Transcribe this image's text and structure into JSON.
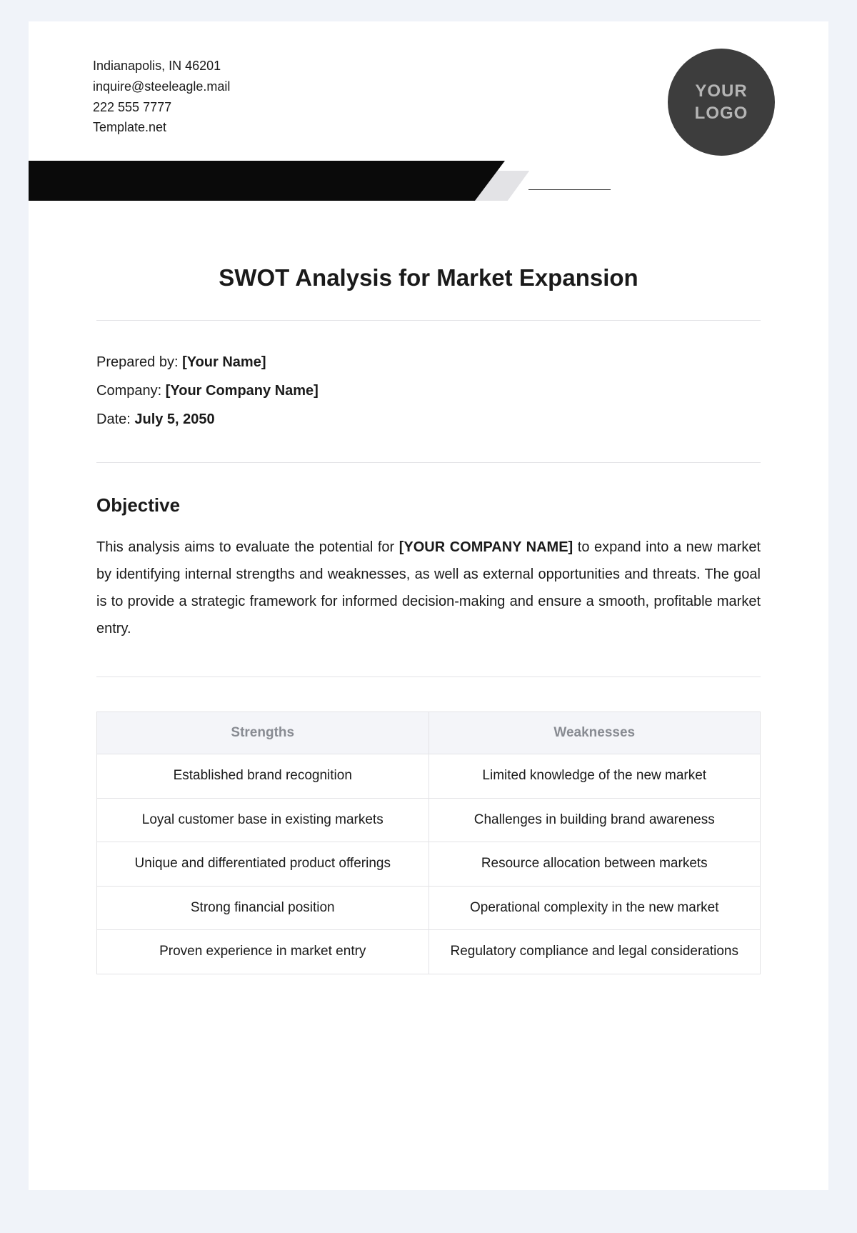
{
  "header": {
    "address": "Indianapolis, IN 46201",
    "email": "inquire@steeleagle.mail",
    "phone": "222 555 7777",
    "site": "Template.net"
  },
  "logo": {
    "line1": "YOUR",
    "line2": "LOGO"
  },
  "title": "SWOT Analysis for Market Expansion",
  "meta": {
    "preparedLabel": "Prepared by: ",
    "preparedValue": "[Your Name]",
    "companyLabel": "Company: ",
    "companyValue": "[Your Company Name]",
    "dateLabel": "Date: ",
    "dateValue": "July 5, 2050"
  },
  "objective": {
    "heading": "Objective",
    "pre": "This analysis aims to evaluate the potential for ",
    "placeholder": "[YOUR COMPANY NAME]",
    "post": " to expand into a new market by identifying internal strengths and weaknesses, as well as external opportunities and threats. The goal is to provide a strategic framework for informed decision-making and ensure a smooth, profitable market entry."
  },
  "swot": {
    "headers": {
      "strengths": "Strengths",
      "weaknesses": "Weaknesses"
    },
    "rows": [
      {
        "s": "Established brand recognition",
        "w": "Limited knowledge of the new market"
      },
      {
        "s": "Loyal customer base in existing markets",
        "w": "Challenges in building brand awareness"
      },
      {
        "s": "Unique and differentiated product offerings",
        "w": "Resource allocation between markets"
      },
      {
        "s": "Strong financial position",
        "w": "Operational complexity in the new market"
      },
      {
        "s": "Proven experience in market entry",
        "w": "Regulatory compliance and legal considerations"
      }
    ]
  },
  "colors": {
    "pageBg": "#f0f3f9",
    "docBg": "#ffffff",
    "text": "#1a1a1a",
    "barBlack": "#0a0a0a",
    "grayShape": "#e3e3e6",
    "border": "#e3e3e6",
    "thBg": "#f4f5f9",
    "thText": "#888b92",
    "logoBg": "#3d3d3d",
    "logoText": "#b5b5b5"
  }
}
